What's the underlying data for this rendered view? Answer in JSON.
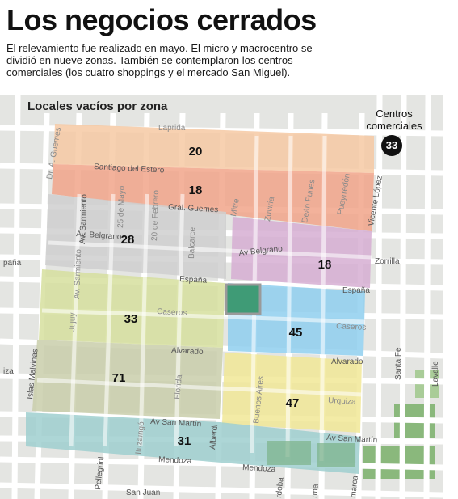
{
  "header": {
    "title": "Los negocios cerrados",
    "intro_lines": [
      "El relevamiento fue realizado en mayo. El micro y macrocentro se",
      "dividió en nueve zonas. También se contemplaron los centros",
      "comerciales (los cuatro shoppings y el mercado San Miguel)."
    ]
  },
  "map": {
    "title": "Locales vacíos por zona",
    "centros_comerciales": {
      "label_lines": [
        "Centros",
        "comerciales"
      ],
      "value": "33"
    },
    "zones": [
      {
        "id": "zona-1",
        "value": "20",
        "color": "#f6c9a3"
      },
      {
        "id": "zona-2",
        "value": "18",
        "color": "#f1a58a"
      },
      {
        "id": "zona-3",
        "value": "28",
        "color": "#cfcfcf"
      },
      {
        "id": "zona-4",
        "value": "18",
        "color": "#d6aed2"
      },
      {
        "id": "zona-5",
        "value": "33",
        "color": "#d6df9e"
      },
      {
        "id": "zona-6",
        "value": "45",
        "color": "#8fcfee"
      },
      {
        "id": "zona-7",
        "value": "71",
        "color": "#c9ceaa"
      },
      {
        "id": "zona-8",
        "value": "47",
        "color": "#f1e796"
      },
      {
        "id": "zona-9",
        "value": "31",
        "color": "#9fcfcf"
      }
    ],
    "streets": {
      "laprida": "Laprida",
      "guemes_a": "Dr. A. Guemes",
      "santiago": "Santiago del Estero",
      "gral_guemes": "Gral. Guemes",
      "sarmiento": "Av. Sarmiento",
      "mayo": "25 de Mayo",
      "febrero": "20 de Febrero",
      "balcarce": "Balcarce",
      "mitre": "Mitre",
      "zuviria": "Zuviría",
      "dean_funes": "Deán Funes",
      "pueyrredon": "Pueyrredón",
      "vicente_lopez": "Vicente López",
      "belgrano": "Av. Belgrano",
      "belgrano_e": "Av Belgrano",
      "espana": "España",
      "espana_w": "paña",
      "zorrilla": "Zorrilla",
      "caseros": "Caseros",
      "jujuy": "Jujuy",
      "alvarado": "Alvarado",
      "santa_fe": "Santa Fe",
      "lavalle": "Lavalle",
      "malvinas": "Islas Malvinas",
      "florida": "Florida",
      "buenos_aires": "Buenos Aires",
      "urquiza": "Urquiza",
      "izn": "iza",
      "san_martin": "Av San Martín",
      "ituzaingo": "Ituzaingó",
      "alberdi": "Alberdi",
      "pellegrini": "Pellegrini",
      "mendoza": "Mendoza",
      "san_juan": "San Juan",
      "cordoba": "rdoba",
      "tucuman": "rma",
      "catamarca": "marca"
    },
    "colors": {
      "background": "#e4e5e2",
      "street": "#ffffff",
      "park": "#8ab87c",
      "plaza_border": "#9a9a9a"
    }
  }
}
